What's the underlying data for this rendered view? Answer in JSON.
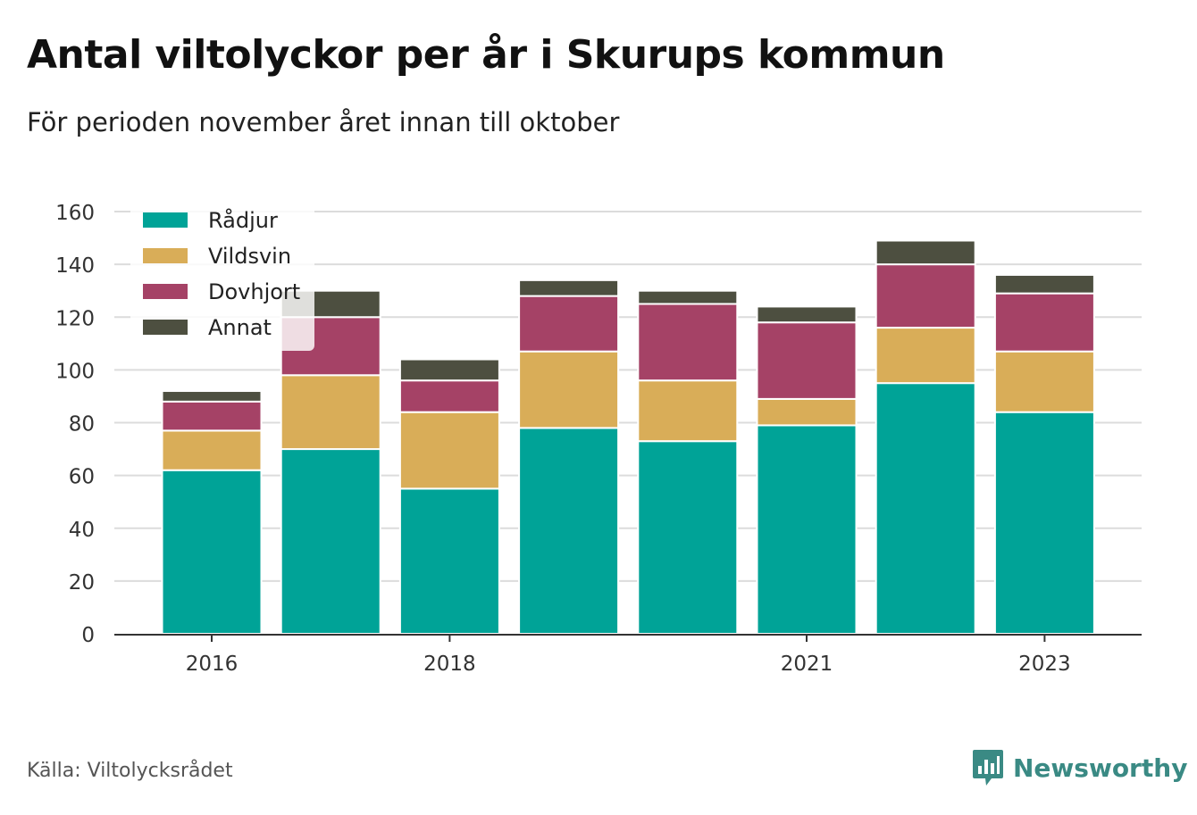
{
  "header": {
    "title": "Antal viltolyckor per år i Skurups kommun",
    "subtitle": "För perioden november året innan till oktober"
  },
  "footer": {
    "source": "Källa: Viltolycksrådet",
    "brand": "Newsworthy",
    "brand_icon": "bar-chart-speech-bubble-icon"
  },
  "chart_data": {
    "type": "bar",
    "stacked": true,
    "categories": [
      "2016",
      "2017",
      "2018",
      "2019",
      "2020",
      "2021",
      "2022",
      "2023"
    ],
    "x_tick_labels": [
      "2016",
      "2018",
      "2021",
      "2023"
    ],
    "series": [
      {
        "name": "Rådjur",
        "color": "#00a397",
        "values": [
          62,
          70,
          55,
          78,
          73,
          79,
          95,
          84
        ]
      },
      {
        "name": "Vildsvin",
        "color": "#d9ad58",
        "values": [
          15,
          28,
          29,
          29,
          23,
          10,
          21,
          23
        ]
      },
      {
        "name": "Dovhjort",
        "color": "#a54266",
        "values": [
          11,
          22,
          12,
          21,
          29,
          29,
          24,
          22
        ]
      },
      {
        "name": "Annat",
        "color": "#4d4f40",
        "values": [
          4,
          10,
          8,
          6,
          5,
          6,
          9,
          7
        ]
      }
    ],
    "ylim": [
      0,
      160
    ],
    "yticks": [
      0,
      20,
      40,
      60,
      80,
      100,
      120,
      140,
      160
    ],
    "grid": true,
    "legend_position": "top-left",
    "xlabel": "",
    "ylabel": ""
  }
}
